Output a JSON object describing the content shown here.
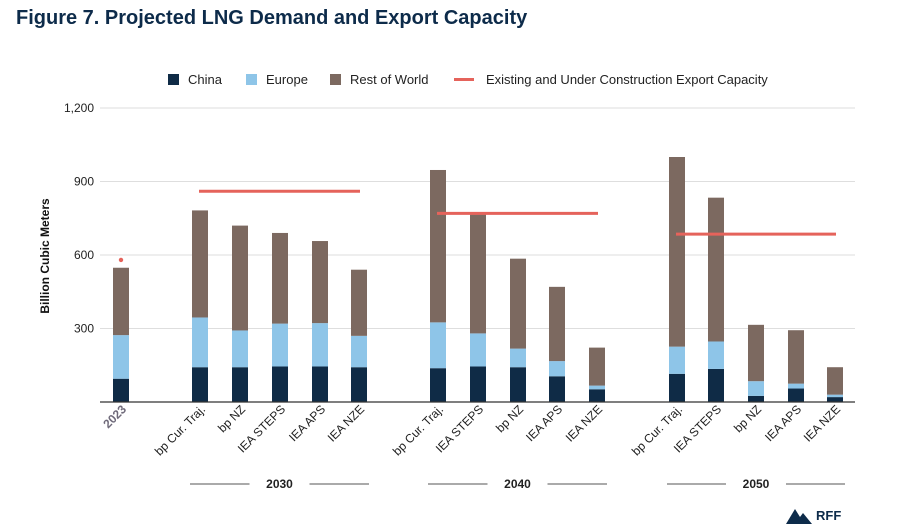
{
  "figure_title": "Figure 7.  Projected LNG Demand and Export Capacity",
  "colors": {
    "china": "#0f2b46",
    "europe": "#8ec5e8",
    "rest_of_world": "#7c6960",
    "capacity": "#e5635b",
    "title": "#0d2b4a",
    "grid": "#dedede"
  },
  "legend": {
    "china": "China",
    "europe": "Europe",
    "rest_of_world": "Rest of World",
    "capacity": "Existing and Under Construction Export Capacity"
  },
  "logo": {
    "icon": "rff-mountain-icon",
    "text": "RFF"
  },
  "chart_data": {
    "type": "bar",
    "stacked": true,
    "ylabel": "Billion Cubic Meters",
    "ylim": [
      0,
      1200
    ],
    "yticks": [
      "1,200",
      "900",
      "600",
      "300"
    ],
    "ytick_values": [
      1200,
      900,
      600,
      300
    ],
    "grid": true,
    "legend_position": "top",
    "categories": [
      "2023",
      "bp Cur. Traj.",
      "bp NZ",
      "IEA STEPS",
      "IEA APS",
      "IEA NZE",
      "bp Cur. Traj.",
      "IEA STEPS",
      "bp NZ",
      "IEA APS",
      "IEA NZE",
      "bp Cur. Traj.",
      "IEA STEPS",
      "bp NZ",
      "IEA APS",
      "IEA NZE"
    ],
    "groups": [
      {
        "label": "",
        "start": 0,
        "count": 1
      },
      {
        "label": "2030",
        "start": 1,
        "count": 5
      },
      {
        "label": "2040",
        "start": 6,
        "count": 5
      },
      {
        "label": "2050",
        "start": 11,
        "count": 5
      }
    ],
    "series": [
      {
        "name": "China",
        "values": [
          95,
          142,
          142,
          145,
          145,
          142,
          138,
          145,
          142,
          105,
          52,
          115,
          135,
          25,
          55,
          20
        ]
      },
      {
        "name": "Europe",
        "values": [
          178,
          203,
          150,
          175,
          177,
          128,
          187,
          135,
          76,
          62,
          15,
          111,
          112,
          60,
          20,
          10
        ]
      },
      {
        "name": "Rest of World",
        "values": [
          275,
          437,
          428,
          370,
          335,
          270,
          622,
          485,
          367,
          303,
          155,
          774,
          587,
          230,
          218,
          112
        ]
      }
    ],
    "capacity": [
      {
        "name": "Existing and Under Construction Export Capacity",
        "value": 860,
        "from": 1,
        "to": 5
      },
      {
        "name": "Existing and Under Construction Export Capacity",
        "value": 770,
        "from": 6,
        "to": 10
      },
      {
        "name": "Existing and Under Construction Export Capacity",
        "value": 685,
        "from": 11,
        "to": 15
      }
    ],
    "capacity_2023": 580
  }
}
